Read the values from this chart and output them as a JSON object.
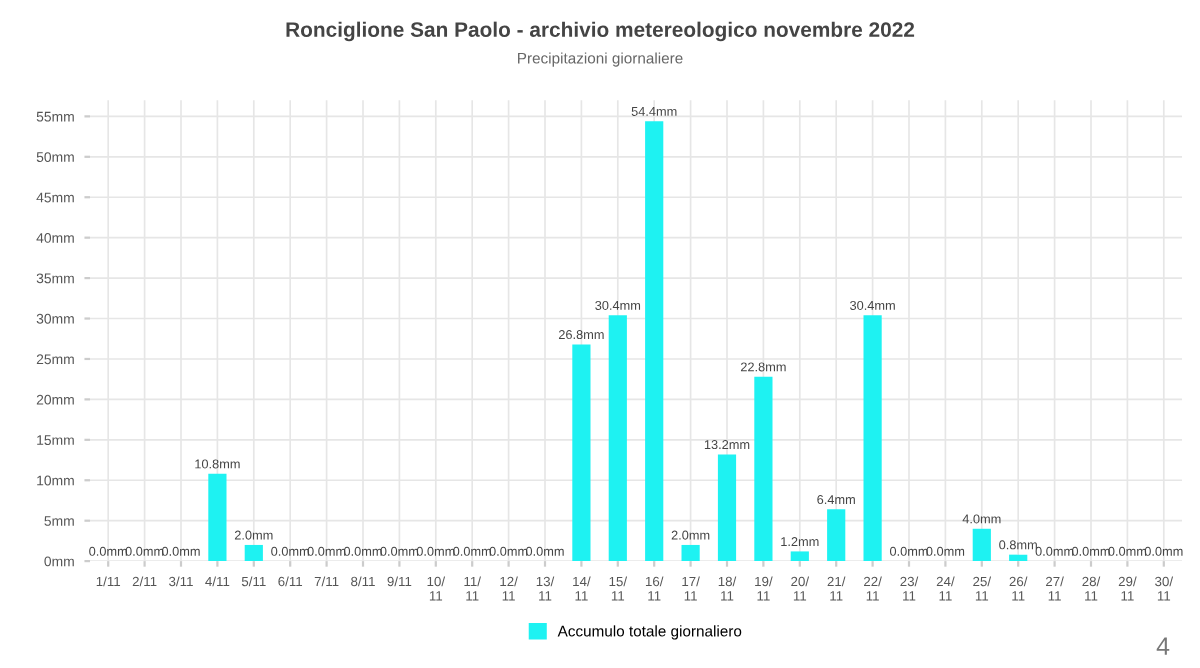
{
  "chart_data": {
    "type": "bar",
    "title": "Ronciglione San Paolo - archivio metereologico novembre 2022",
    "subtitle": "Precipitazioni giornaliere",
    "categories": [
      "1/11",
      "2/11",
      "3/11",
      "4/11",
      "5/11",
      "6/11",
      "7/11",
      "8/11",
      "9/11",
      "10/\n11",
      "11/\n11",
      "12/\n11",
      "13/\n11",
      "14/\n11",
      "15/\n11",
      "16/\n11",
      "17/\n11",
      "18/\n11",
      "19/\n11",
      "20/\n11",
      "21/\n11",
      "22/\n11",
      "23/\n11",
      "24/\n11",
      "25/\n11",
      "26/\n11",
      "27/\n11",
      "28/\n11",
      "29/\n11",
      "30/\n11"
    ],
    "series": [
      {
        "name": "Accumulo totale giornaliero",
        "color": "#1ef2f2",
        "values": [
          0,
          0,
          0,
          10.8,
          2.0,
          0,
          0,
          0,
          0,
          0,
          0,
          0,
          0,
          26.8,
          30.4,
          54.4,
          2.0,
          13.2,
          22.8,
          1.2,
          6.4,
          30.4,
          0,
          0,
          4.0,
          0.8,
          0,
          0,
          0,
          0
        ],
        "value_labels": [
          "0.0mm",
          "0.0mm",
          "0.0mm",
          "10.8mm",
          "2.0mm",
          "0.0mm",
          "0.0mm",
          "0.0mm",
          "0.0mm",
          "0.0mm",
          "0.0mm",
          "0.0mm",
          "0.0mm",
          "26.8mm",
          "30.4mm",
          "54.4mm",
          "2.0mm",
          "13.2mm",
          "22.8mm",
          "1.2mm",
          "6.4mm",
          "30.4mm",
          "0.0mm",
          "0.0mm",
          "4.0mm",
          "0.8mm",
          "0.0mm",
          "0.0mm",
          "0.0mm",
          "0.0mm"
        ]
      }
    ],
    "ylim": [
      0,
      57
    ],
    "yticks": [
      {
        "value": 0,
        "label": "0mm"
      },
      {
        "value": 5,
        "label": "5mm"
      },
      {
        "value": 10,
        "label": "10mm"
      },
      {
        "value": 15,
        "label": "15mm"
      },
      {
        "value": 20,
        "label": "20mm"
      },
      {
        "value": 25,
        "label": "25mm"
      },
      {
        "value": 30,
        "label": "30mm"
      },
      {
        "value": 35,
        "label": "35mm"
      },
      {
        "value": 40,
        "label": "40mm"
      },
      {
        "value": 45,
        "label": "45mm"
      },
      {
        "value": 50,
        "label": "50mm"
      },
      {
        "value": 55,
        "label": "55mm"
      }
    ],
    "grid": true,
    "legend": "bottom",
    "annotations": [
      "4"
    ]
  }
}
